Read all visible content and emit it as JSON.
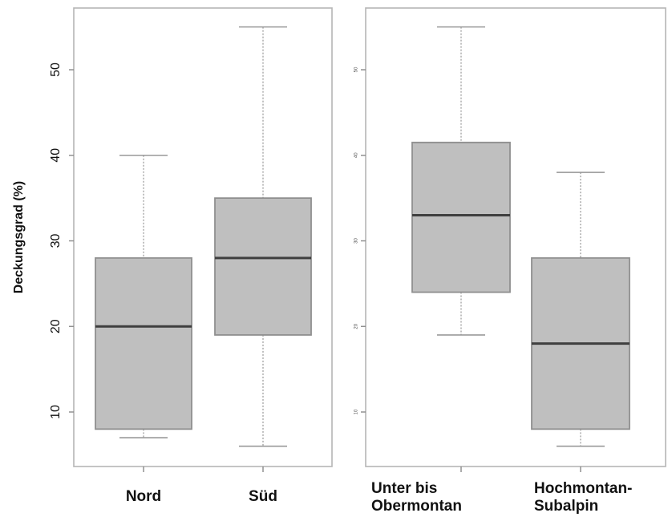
{
  "chart_data": [
    {
      "type": "boxplot",
      "ylabel": "Deckungsgrad (%)",
      "ylim": [
        3.5,
        58.5
      ],
      "yticks": [
        10,
        20,
        30,
        40,
        50
      ],
      "categories": [
        "Nord",
        "Süd"
      ],
      "boxes": [
        {
          "category": "Nord",
          "min": 7,
          "q1": 8,
          "median": 20,
          "q3": 28,
          "max": 40
        },
        {
          "category": "Süd",
          "min": 6,
          "q1": 19,
          "median": 28,
          "q3": 35,
          "max": 55
        }
      ]
    },
    {
      "type": "boxplot",
      "ylabel": "",
      "ylim": [
        3.5,
        58.5
      ],
      "yticks": [
        10,
        20,
        30,
        40,
        50
      ],
      "categories": [
        "Unter bis Obermontan",
        "Hochmontan-Subalpin"
      ],
      "category_lines": [
        [
          "Unter bis",
          "Obermontan"
        ],
        [
          "Hochmontan-",
          "Subalpin"
        ]
      ],
      "boxes": [
        {
          "category": "Unter bis Obermontan",
          "min": 19,
          "q1": 24,
          "median": 33,
          "q3": 41.5,
          "max": 55
        },
        {
          "category": "Hochmontan-Subalpin",
          "min": 6,
          "q1": 8,
          "median": 18,
          "q3": 28,
          "max": 38
        }
      ]
    }
  ]
}
